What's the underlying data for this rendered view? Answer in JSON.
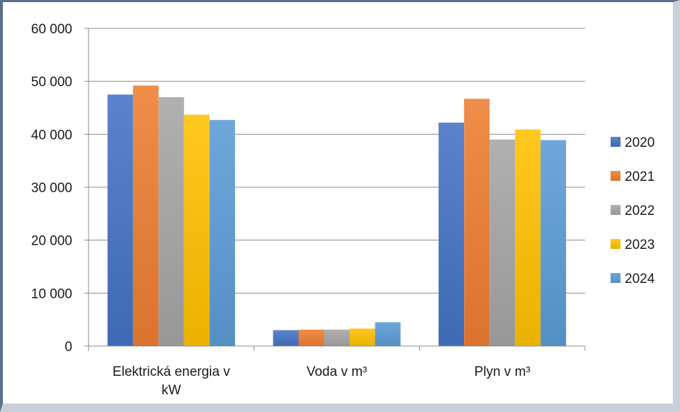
{
  "chart_data": {
    "type": "bar",
    "title": "",
    "xlabel": "",
    "ylabel": "",
    "ylim": [
      0,
      60000
    ],
    "yticks": [
      0,
      10000,
      20000,
      30000,
      40000,
      50000,
      60000
    ],
    "ytick_labels": [
      "0",
      "10 000",
      "20 000",
      "30 000",
      "40 000",
      "50 000",
      "60 000"
    ],
    "categories": [
      [
        "Elektrická energia v",
        "kW"
      ],
      [
        "Voda v m³"
      ],
      [
        "Plyn v m³"
      ]
    ],
    "series": [
      {
        "name": "2020",
        "color": "#4472c4",
        "values": [
          47500,
          3000,
          42200
        ]
      },
      {
        "name": "2021",
        "color": "#ed7d31",
        "values": [
          49200,
          3100,
          46700
        ]
      },
      {
        "name": "2022",
        "color": "#a5a5a5",
        "values": [
          47000,
          3100,
          39000
        ]
      },
      {
        "name": "2023",
        "color": "#ffc000",
        "values": [
          43700,
          3300,
          40900
        ]
      },
      {
        "name": "2024",
        "color": "#5b9bd5",
        "values": [
          42700,
          4500,
          38900
        ]
      }
    ],
    "grid": true,
    "legend": "right"
  }
}
